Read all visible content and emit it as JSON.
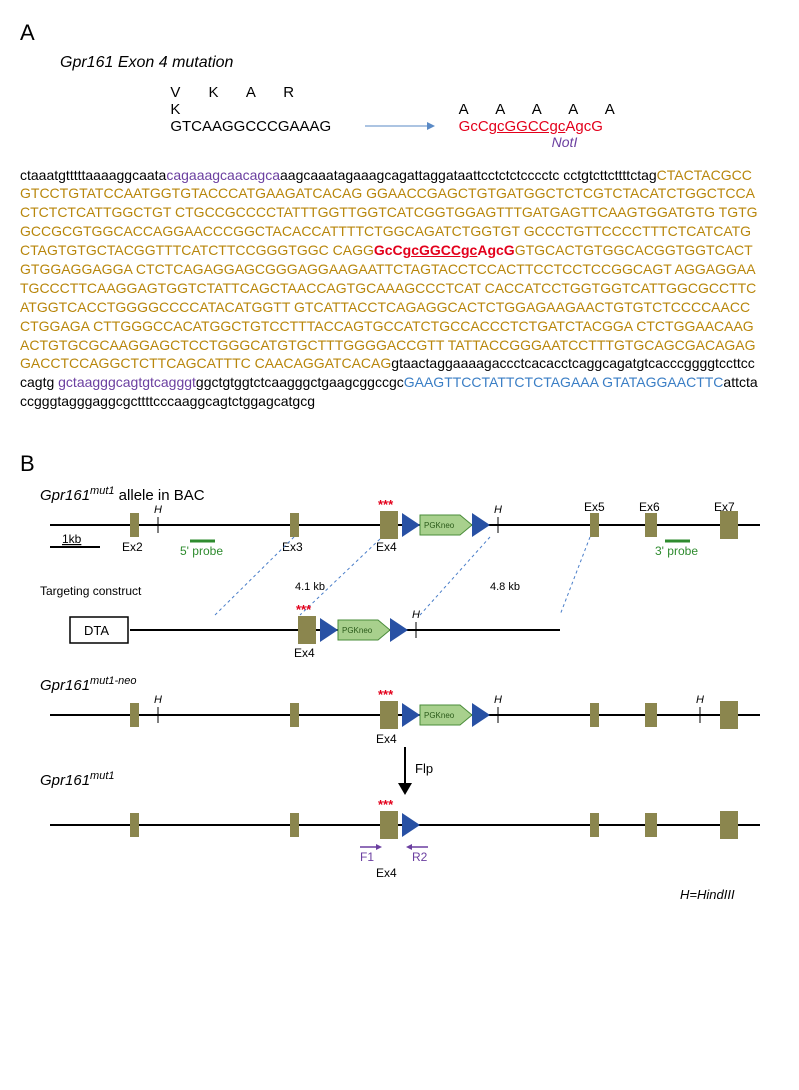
{
  "panelA": {
    "label": "A",
    "title": "Gpr161 Exon 4 mutation",
    "aa_original": "V   K   A   R   K",
    "seq_original": "GTCAAGGCCCGAAAG",
    "aa_mutant": "A   A   A   A   A",
    "seq_mutant_pre": "GcC",
    "seq_mutant_underline": "gcGGCCgc",
    "seq_mutant_post": "AgcG",
    "noti_label": "NotI",
    "sequence_parts": [
      {
        "class": "seq-black",
        "text": "ctaaatgtttttaaaaggcaata"
      },
      {
        "class": "seq-purple",
        "text": "cagaaagcaacagca"
      },
      {
        "class": "seq-black",
        "text": "aagcaaatagaaagcagattaggataattcctctctcccctc cctgtcttcttttctag"
      },
      {
        "class": "seq-gold",
        "text": "CTACTACGCCGTCCTGTATCCAATGGTGTACCCATGAAGATCACAG GGAACCGAGCTGTGATGGCTCTCGTCTACATCTGGCTCCACTCTCTCATTGGCTGT CTGCCGCCCCTATTTGGTTGGTCATCGGTGGAGTTTGATGAGTTCAAGTGGATGTG TGTGGCCGCGTGGCACCAGGAACCCGGCTACACCATTTTCTGGCAGATCTGGTGT GCCCTGTTCCCCTTTCTCATCATGCTAGTGTGCTACGGTTTCATCTTCCGGGTGGC CAGG"
      },
      {
        "class": "seq-red-bold",
        "text": "GcCgcGGCCgcAgcG"
      },
      {
        "class": "seq-gold",
        "text": "GTGCACTGTGGCACGGTGGTCACTGTGGAGGAGGA CTCTCAGAGGAGCGGGAGGAAGAATTCTAGTACCTCCACTTCCTCCTCCGGCAGT AGGAGGAATGCCCTTCAAGGAGTGGTCTATTCAGCTAACCAGTGCAAAGCCCTCAT CACCATCCTGGTGGTCATTGGCGCCTTCATGGTCACCTGGGGCCCCATACATGGTT GTCATTACCTCAGAGGCACTCTGGAGAAGAACTGTGTCTCCCCAACCCTGGAGA CTTGGGCCACATGGCTGTCCTTTACCAGTGCCATCTGCCACCCTCTGATCTACGGA CTCTGGAACAAGACTGTGCGCAAGGAGCTCCTGGGCATGTGCTTTGGGGACCGTT TATTACCGGGAATCCTTTGTGCAGCGACAGAGGACCTCCAGGCTCTTCAGCATTTC CAACAGGATCACAG"
      },
      {
        "class": "seq-black",
        "text": "gtaactaggaaaagaccctcacacctcaggcagatgtcacccggggtccttcccagtg "
      },
      {
        "class": "seq-purple",
        "text": "gctaagggcagtgtcagggt"
      },
      {
        "class": "seq-black",
        "text": "ggctgtggtctcaagggctgaagcggccgc"
      },
      {
        "class": "seq-blue",
        "text": "GAAGTTCCTATTCTCTAGAAA GTATAGGAACTTC"
      },
      {
        "class": "seq-black",
        "text": "attctaccgggtagggaggcgcttttcccaaggcagtctggagcatgcg"
      }
    ]
  },
  "panelB": {
    "label": "B",
    "alleles": {
      "bac": {
        "label_prefix": "Gpr161",
        "label_sup": "mut1",
        "label_suffix": " allele in BAC"
      },
      "targeting": {
        "label": "Targeting construct"
      },
      "neo": {
        "label_prefix": "Gpr161",
        "label_sup": "mut1-neo"
      },
      "final": {
        "label_prefix": "Gpr161",
        "label_sup": "mut1"
      }
    },
    "labels": {
      "scale": "1kb",
      "ex2": "Ex2",
      "ex3": "Ex3",
      "ex4": "Ex4",
      "ex5": "Ex5",
      "ex6": "Ex6",
      "ex7": "Ex7",
      "probe5": "5' probe",
      "probe3": "3' probe",
      "pgk": "PGKneo",
      "dta": "DTA",
      "h": "H",
      "flp": "Flp",
      "arm1": "4.1 kb",
      "arm2": "4.8 kb",
      "f1": "F1",
      "r2": "R2",
      "hindiii": "H=HindIII"
    },
    "colors": {
      "exon": "#8b864e",
      "frt": "#2851a4",
      "pgk": "#a8d08d",
      "probe": "#2e8b2e",
      "stars": "#e3001b",
      "dashed": "#4a7ec9",
      "primer": "#6b3fa0"
    }
  }
}
